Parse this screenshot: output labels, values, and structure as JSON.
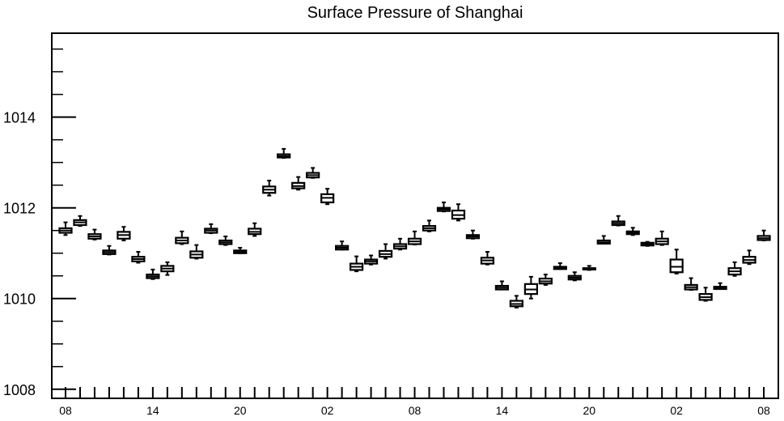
{
  "chart_data": {
    "type": "box",
    "title": "Surface Pressure of Shanghai",
    "xlabel": "",
    "ylabel": "",
    "ylim": [
      1007.8,
      1015.85
    ],
    "y_ticks": [
      1008,
      1010,
      1012,
      1014
    ],
    "y_tick_labels": [
      "1008",
      "1010",
      "1012",
      "1014"
    ],
    "x_tick_labels": [
      "08",
      "14",
      "20",
      "02",
      "08",
      "14",
      "20",
      "02",
      "08"
    ],
    "x_tick_label_positions": [
      0,
      6,
      12,
      18,
      24,
      30,
      36,
      42,
      48
    ],
    "box_color": "#000000",
    "grid": false,
    "legend": "none",
    "boxes": [
      {
        "i": 0,
        "wlo": 1011.4,
        "q1": 1011.45,
        "med": 1011.5,
        "q3": 1011.55,
        "whi": 1011.68
      },
      {
        "i": 1,
        "wlo": 1011.6,
        "q1": 1011.62,
        "med": 1011.68,
        "q3": 1011.73,
        "whi": 1011.82
      },
      {
        "i": 2,
        "wlo": 1011.3,
        "q1": 1011.32,
        "med": 1011.37,
        "q3": 1011.42,
        "whi": 1011.52
      },
      {
        "i": 3,
        "wlo": 1010.97,
        "q1": 1010.98,
        "med": 1011.02,
        "q3": 1011.06,
        "whi": 1011.16
      },
      {
        "i": 4,
        "wlo": 1011.28,
        "q1": 1011.32,
        "med": 1011.4,
        "q3": 1011.47,
        "whi": 1011.58
      },
      {
        "i": 5,
        "wlo": 1010.79,
        "q1": 1010.82,
        "med": 1010.87,
        "q3": 1010.92,
        "whi": 1011.03
      },
      {
        "i": 6,
        "wlo": 1010.43,
        "q1": 1010.45,
        "med": 1010.49,
        "q3": 1010.53,
        "whi": 1010.64
      },
      {
        "i": 7,
        "wlo": 1010.52,
        "q1": 1010.6,
        "med": 1010.66,
        "q3": 1010.72,
        "whi": 1010.8
      },
      {
        "i": 8,
        "wlo": 1011.2,
        "q1": 1011.22,
        "med": 1011.28,
        "q3": 1011.34,
        "whi": 1011.48
      },
      {
        "i": 9,
        "wlo": 1010.88,
        "q1": 1010.9,
        "med": 1010.97,
        "q3": 1011.04,
        "whi": 1011.18
      },
      {
        "i": 10,
        "wlo": 1011.44,
        "q1": 1011.45,
        "med": 1011.5,
        "q3": 1011.54,
        "whi": 1011.64
      },
      {
        "i": 11,
        "wlo": 1011.18,
        "q1": 1011.2,
        "med": 1011.24,
        "q3": 1011.28,
        "whi": 1011.37
      },
      {
        "i": 12,
        "wlo": 1011.0,
        "q1": 1011.0,
        "med": 1011.03,
        "q3": 1011.06,
        "whi": 1011.12
      },
      {
        "i": 13,
        "wlo": 1011.38,
        "q1": 1011.42,
        "med": 1011.47,
        "q3": 1011.54,
        "whi": 1011.66
      },
      {
        "i": 14,
        "wlo": 1012.27,
        "q1": 1012.33,
        "med": 1012.4,
        "q3": 1012.47,
        "whi": 1012.6
      },
      {
        "i": 15,
        "wlo": 1013.1,
        "q1": 1013.11,
        "med": 1013.14,
        "q3": 1013.18,
        "whi": 1013.3
      },
      {
        "i": 16,
        "wlo": 1012.4,
        "q1": 1012.43,
        "med": 1012.48,
        "q3": 1012.55,
        "whi": 1012.68
      },
      {
        "i": 17,
        "wlo": 1012.66,
        "q1": 1012.67,
        "med": 1012.72,
        "q3": 1012.77,
        "whi": 1012.88
      },
      {
        "i": 18,
        "wlo": 1012.08,
        "q1": 1012.12,
        "med": 1012.22,
        "q3": 1012.3,
        "whi": 1012.42
      },
      {
        "i": 19,
        "wlo": 1011.08,
        "q1": 1011.08,
        "med": 1011.12,
        "q3": 1011.16,
        "whi": 1011.26
      },
      {
        "i": 20,
        "wlo": 1010.6,
        "q1": 1010.63,
        "med": 1010.7,
        "q3": 1010.77,
        "whi": 1010.93
      },
      {
        "i": 21,
        "wlo": 1010.75,
        "q1": 1010.77,
        "med": 1010.82,
        "q3": 1010.86,
        "whi": 1010.95
      },
      {
        "i": 22,
        "wlo": 1010.88,
        "q1": 1010.92,
        "med": 1010.98,
        "q3": 1011.05,
        "whi": 1011.2
      },
      {
        "i": 23,
        "wlo": 1011.08,
        "q1": 1011.1,
        "med": 1011.15,
        "q3": 1011.2,
        "whi": 1011.32
      },
      {
        "i": 24,
        "wlo": 1011.19,
        "q1": 1011.2,
        "med": 1011.26,
        "q3": 1011.32,
        "whi": 1011.48
      },
      {
        "i": 25,
        "wlo": 1011.48,
        "q1": 1011.5,
        "med": 1011.55,
        "q3": 1011.6,
        "whi": 1011.72
      },
      {
        "i": 26,
        "wlo": 1011.92,
        "q1": 1011.93,
        "med": 1011.97,
        "q3": 1012.0,
        "whi": 1012.12
      },
      {
        "i": 27,
        "wlo": 1011.72,
        "q1": 1011.76,
        "med": 1011.84,
        "q3": 1011.94,
        "whi": 1012.08
      },
      {
        "i": 28,
        "wlo": 1011.32,
        "q1": 1011.33,
        "med": 1011.37,
        "q3": 1011.4,
        "whi": 1011.5
      },
      {
        "i": 29,
        "wlo": 1010.75,
        "q1": 1010.77,
        "med": 1010.84,
        "q3": 1010.9,
        "whi": 1011.03
      },
      {
        "i": 30,
        "wlo": 1010.2,
        "q1": 1010.2,
        "med": 1010.24,
        "q3": 1010.28,
        "whi": 1010.38
      },
      {
        "i": 31,
        "wlo": 1009.8,
        "q1": 1009.83,
        "med": 1009.88,
        "q3": 1009.95,
        "whi": 1010.06
      },
      {
        "i": 32,
        "wlo": 1010.0,
        "q1": 1010.1,
        "med": 1010.2,
        "q3": 1010.32,
        "whi": 1010.48
      },
      {
        "i": 33,
        "wlo": 1010.3,
        "q1": 1010.33,
        "med": 1010.38,
        "q3": 1010.44,
        "whi": 1010.53
      },
      {
        "i": 34,
        "wlo": 1010.65,
        "q1": 1010.65,
        "med": 1010.67,
        "q3": 1010.7,
        "whi": 1010.78
      },
      {
        "i": 35,
        "wlo": 1010.4,
        "q1": 1010.42,
        "med": 1010.46,
        "q3": 1010.5,
        "whi": 1010.58
      },
      {
        "i": 36,
        "wlo": 1010.63,
        "q1": 1010.64,
        "med": 1010.66,
        "q3": 1010.67,
        "whi": 1010.72
      },
      {
        "i": 37,
        "wlo": 1011.21,
        "q1": 1011.21,
        "med": 1011.24,
        "q3": 1011.28,
        "whi": 1011.38
      },
      {
        "i": 38,
        "wlo": 1011.61,
        "q1": 1011.62,
        "med": 1011.66,
        "q3": 1011.7,
        "whi": 1011.82
      },
      {
        "i": 39,
        "wlo": 1011.4,
        "q1": 1011.42,
        "med": 1011.45,
        "q3": 1011.48,
        "whi": 1011.56
      },
      {
        "i": 40,
        "wlo": 1011.16,
        "q1": 1011.17,
        "med": 1011.2,
        "q3": 1011.23,
        "whi": 1011.25
      },
      {
        "i": 41,
        "wlo": 1011.18,
        "q1": 1011.2,
        "med": 1011.26,
        "q3": 1011.32,
        "whi": 1011.48
      },
      {
        "i": 42,
        "wlo": 1010.55,
        "q1": 1010.58,
        "med": 1010.7,
        "q3": 1010.86,
        "whi": 1011.08
      },
      {
        "i": 43,
        "wlo": 1010.19,
        "q1": 1010.2,
        "med": 1010.25,
        "q3": 1010.3,
        "whi": 1010.45
      },
      {
        "i": 44,
        "wlo": 1009.95,
        "q1": 1009.97,
        "med": 1010.03,
        "q3": 1010.1,
        "whi": 1010.24
      },
      {
        "i": 45,
        "wlo": 1010.21,
        "q1": 1010.21,
        "med": 1010.23,
        "q3": 1010.26,
        "whi": 1010.34
      },
      {
        "i": 46,
        "wlo": 1010.5,
        "q1": 1010.53,
        "med": 1010.6,
        "q3": 1010.67,
        "whi": 1010.8
      },
      {
        "i": 47,
        "wlo": 1010.76,
        "q1": 1010.79,
        "med": 1010.85,
        "q3": 1010.92,
        "whi": 1011.06
      },
      {
        "i": 48,
        "wlo": 1011.28,
        "q1": 1011.29,
        "med": 1011.33,
        "q3": 1011.38,
        "whi": 1011.5
      }
    ]
  }
}
